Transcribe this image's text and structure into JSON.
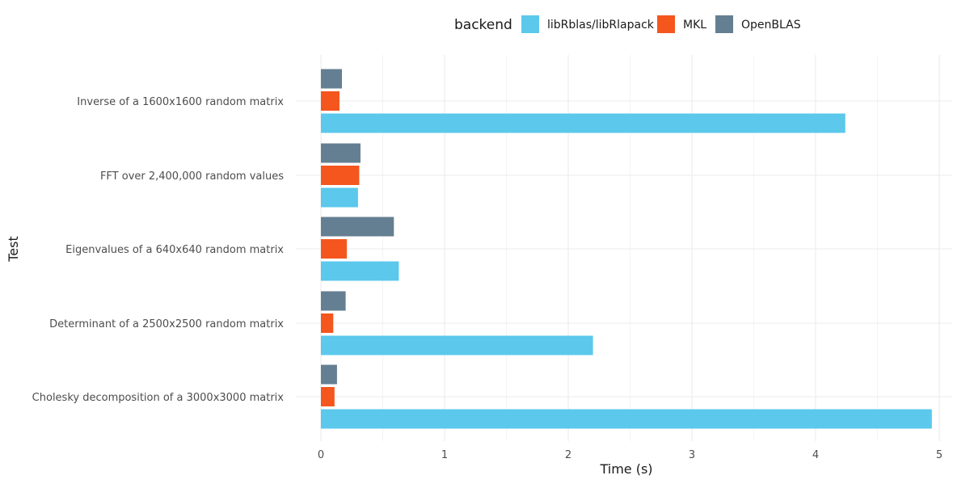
{
  "chart_data": {
    "type": "bar",
    "orientation": "horizontal",
    "title": "",
    "xlabel": "Time (s)",
    "ylabel": "Test",
    "xlim": [
      0,
      5
    ],
    "x_ticks": [
      0,
      1,
      2,
      3,
      4,
      5
    ],
    "grid": true,
    "legend": {
      "title": "backend",
      "position": "top"
    },
    "categories": [
      "Inverse of a 1600x1600 random matrix",
      "FFT over 2,400,000 random values",
      "Eigenvalues of a 640x640 random matrix",
      "Determinant of a 2500x2500 random matrix",
      "Cholesky decomposition of a 3000x3000 matrix"
    ],
    "series": [
      {
        "name": "libRblas/libRlapack",
        "color": "#5bc8ec",
        "values": [
          4.24,
          0.3,
          0.63,
          2.2,
          4.94
        ]
      },
      {
        "name": "MKL",
        "color": "#f4561e",
        "values": [
          0.15,
          0.31,
          0.21,
          0.1,
          0.11
        ]
      },
      {
        "name": "OpenBLAS",
        "color": "#647f91",
        "values": [
          0.17,
          0.32,
          0.59,
          0.2,
          0.13
        ]
      }
    ]
  }
}
